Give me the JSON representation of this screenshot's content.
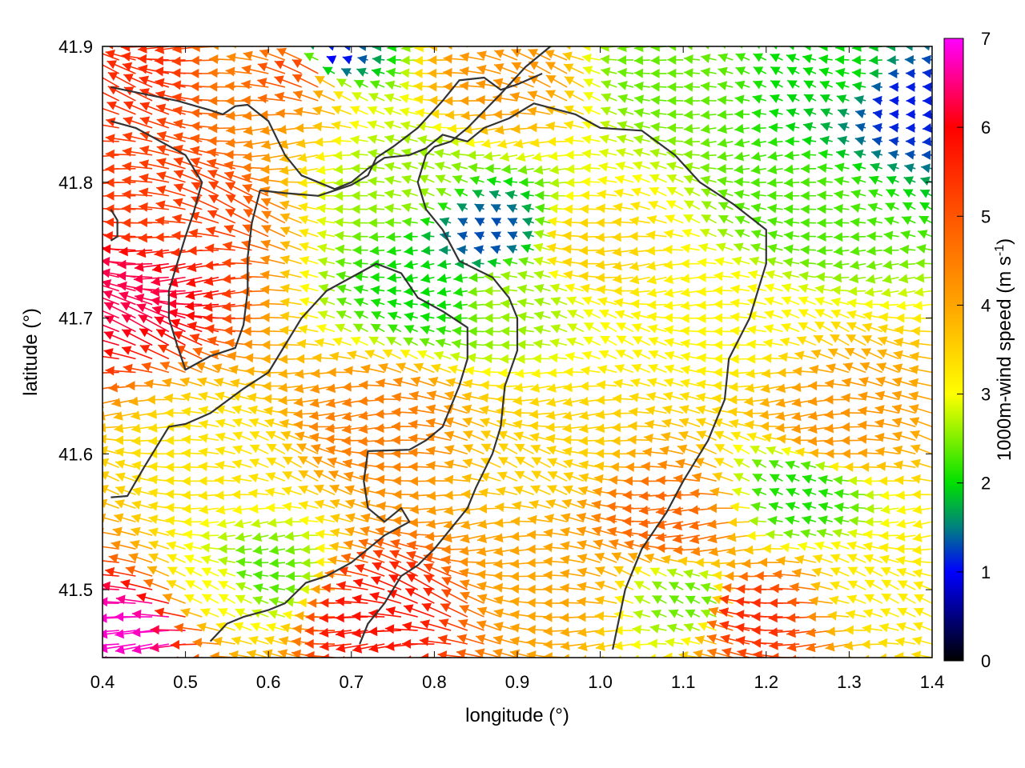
{
  "chart_data": {
    "type": "quiver",
    "title": "",
    "xlabel": "longitude (°)",
    "ylabel": "latitude (°)",
    "xlim": [
      0.4,
      1.4
    ],
    "ylim": [
      41.45,
      41.9
    ],
    "xticks": [
      "0.4",
      "0.5",
      "0.6",
      "0.7",
      "0.8",
      "0.9",
      "1.0",
      "1.1",
      "1.2",
      "1.3",
      "1.4"
    ],
    "yticks": [
      "41.5",
      "41.6",
      "41.7",
      "41.8",
      "41.9"
    ],
    "grid": false,
    "colorbar": {
      "label": "1000m-wind speed (m s",
      "label_superscript": "-1",
      "label_suffix": ")",
      "range": [
        0,
        7
      ],
      "ticks": [
        "0",
        "1",
        "2",
        "3",
        "4",
        "5",
        "6",
        "7"
      ],
      "colormap": [
        {
          "value": 0,
          "color": "#000000"
        },
        {
          "value": 1,
          "color": "#0000ff"
        },
        {
          "value": 1.5,
          "color": "#008080"
        },
        {
          "value": 2,
          "color": "#00e000"
        },
        {
          "value": 3,
          "color": "#ffff00"
        },
        {
          "value": 4,
          "color": "#ffa500"
        },
        {
          "value": 5,
          "color": "#ff5500"
        },
        {
          "value": 6,
          "color": "#ff0000"
        },
        {
          "value": 7,
          "color": "#ff00ff"
        }
      ]
    },
    "wind_field": {
      "description_units": "speed in m s-1, direction degrees (mathematical, 180 = toward west)",
      "grid_lon_step": 0.02,
      "grid_lat_step": 0.01,
      "prevailing_direction_deg": 180,
      "speed_regions": [
        {
          "lon": 0.45,
          "lat": 41.88,
          "speed": 5.5
        },
        {
          "lon": 0.65,
          "lat": 41.88,
          "speed": 5.2
        },
        {
          "lon": 0.68,
          "lat": 41.89,
          "speed": 1.0
        },
        {
          "lon": 0.9,
          "lat": 41.88,
          "speed": 4.2
        },
        {
          "lon": 1.08,
          "lat": 41.88,
          "speed": 2.4
        },
        {
          "lon": 1.3,
          "lat": 41.88,
          "speed": 2.0
        },
        {
          "lon": 1.37,
          "lat": 41.86,
          "speed": 1.1
        },
        {
          "lon": 1.25,
          "lat": 41.78,
          "speed": 2.3
        },
        {
          "lon": 0.45,
          "lat": 41.72,
          "speed": 6.3
        },
        {
          "lon": 0.5,
          "lat": 41.78,
          "speed": 5.3
        },
        {
          "lon": 0.87,
          "lat": 41.76,
          "speed": 1.3
        },
        {
          "lon": 0.8,
          "lat": 41.72,
          "speed": 2.0
        },
        {
          "lon": 0.9,
          "lat": 41.72,
          "speed": 2.6
        },
        {
          "lon": 0.78,
          "lat": 41.8,
          "speed": 2.6
        },
        {
          "lon": 1.0,
          "lat": 41.75,
          "speed": 3.5
        },
        {
          "lon": 1.15,
          "lat": 41.7,
          "speed": 3.1
        },
        {
          "lon": 0.55,
          "lat": 41.6,
          "speed": 3.3
        },
        {
          "lon": 0.75,
          "lat": 41.62,
          "speed": 4.5
        },
        {
          "lon": 0.95,
          "lat": 41.6,
          "speed": 3.5
        },
        {
          "lon": 1.1,
          "lat": 41.55,
          "speed": 4.8
        },
        {
          "lon": 1.3,
          "lat": 41.62,
          "speed": 4.2
        },
        {
          "lon": 1.25,
          "lat": 41.57,
          "speed": 2.1
        },
        {
          "lon": 0.45,
          "lat": 41.47,
          "speed": 6.8
        },
        {
          "lon": 0.55,
          "lat": 41.5,
          "speed": 3.0
        },
        {
          "lon": 0.6,
          "lat": 41.51,
          "speed": 2.3
        },
        {
          "lon": 0.75,
          "lat": 41.48,
          "speed": 5.8
        },
        {
          "lon": 0.95,
          "lat": 41.5,
          "speed": 4.0
        },
        {
          "lon": 1.12,
          "lat": 41.49,
          "speed": 2.4
        },
        {
          "lon": 1.2,
          "lat": 41.48,
          "speed": 5.5
        },
        {
          "lon": 1.35,
          "lat": 41.5,
          "speed": 3.2
        }
      ]
    },
    "contours": {
      "color": "#333333",
      "lines": [
        [
          [
            0.41,
            41.757
          ],
          [
            0.418,
            41.76
          ],
          [
            0.418,
            41.772
          ],
          [
            0.41,
            41.78
          ]
        ],
        [
          [
            0.41,
            41.87
          ],
          [
            0.45,
            41.865
          ],
          [
            0.49,
            41.86
          ],
          [
            0.53,
            41.853
          ],
          [
            0.545,
            41.85
          ],
          [
            0.56,
            41.856
          ],
          [
            0.575,
            41.857
          ],
          [
            0.6,
            41.845
          ],
          [
            0.62,
            41.82
          ],
          [
            0.64,
            41.805
          ],
          [
            0.68,
            41.795
          ],
          [
            0.7,
            41.8
          ],
          [
            0.72,
            41.81
          ],
          [
            0.74,
            41.818
          ],
          [
            0.77,
            41.82
          ],
          [
            0.79,
            41.825
          ],
          [
            0.81,
            41.835
          ],
          [
            0.84,
            41.83
          ],
          [
            0.86,
            41.84
          ],
          [
            0.89,
            41.847
          ],
          [
            0.92,
            41.858
          ],
          [
            0.97,
            41.85
          ],
          [
            1.0,
            41.84
          ],
          [
            1.05,
            41.838
          ],
          [
            1.09,
            41.82
          ],
          [
            1.12,
            41.8
          ],
          [
            1.16,
            41.784
          ],
          [
            1.2,
            41.765
          ],
          [
            1.2,
            41.74
          ],
          [
            1.19,
            41.72
          ],
          [
            1.18,
            41.7
          ],
          [
            1.155,
            41.67
          ],
          [
            1.15,
            41.64
          ],
          [
            1.13,
            41.61
          ],
          [
            1.1,
            41.58
          ],
          [
            1.08,
            41.557
          ],
          [
            1.05,
            41.53
          ],
          [
            1.03,
            41.5
          ],
          [
            1.015,
            41.456
          ]
        ],
        [
          [
            0.41,
            41.845
          ],
          [
            0.44,
            41.84
          ],
          [
            0.47,
            41.83
          ],
          [
            0.5,
            41.82
          ],
          [
            0.52,
            41.8
          ],
          [
            0.51,
            41.778
          ],
          [
            0.5,
            41.76
          ],
          [
            0.49,
            41.74
          ],
          [
            0.48,
            41.72
          ],
          [
            0.48,
            41.7
          ],
          [
            0.49,
            41.68
          ],
          [
            0.5,
            41.662
          ],
          [
            0.53,
            41.672
          ],
          [
            0.56,
            41.678
          ],
          [
            0.57,
            41.695
          ],
          [
            0.575,
            41.72
          ],
          [
            0.575,
            41.745
          ],
          [
            0.58,
            41.77
          ],
          [
            0.59,
            41.794
          ],
          [
            0.62,
            41.792
          ],
          [
            0.66,
            41.79
          ],
          [
            0.7,
            41.798
          ],
          [
            0.72,
            41.805
          ],
          [
            0.73,
            41.818
          ],
          [
            0.75,
            41.826
          ],
          [
            0.78,
            41.84
          ],
          [
            0.81,
            41.86
          ],
          [
            0.83,
            41.875
          ],
          [
            0.86,
            41.877
          ],
          [
            0.88,
            41.868
          ],
          [
            0.9,
            41.872
          ],
          [
            0.93,
            41.88
          ]
        ],
        [
          [
            0.41,
            41.568
          ],
          [
            0.43,
            41.569
          ],
          [
            0.45,
            41.59
          ],
          [
            0.48,
            41.62
          ],
          [
            0.5,
            41.622
          ],
          [
            0.53,
            41.63
          ],
          [
            0.57,
            41.648
          ],
          [
            0.6,
            41.66
          ],
          [
            0.62,
            41.68
          ],
          [
            0.64,
            41.7
          ],
          [
            0.67,
            41.72
          ],
          [
            0.7,
            41.73
          ],
          [
            0.73,
            41.74
          ],
          [
            0.76,
            41.733
          ],
          [
            0.78,
            41.715
          ],
          [
            0.81,
            41.705
          ],
          [
            0.84,
            41.693
          ],
          [
            0.84,
            41.67
          ],
          [
            0.83,
            41.65
          ],
          [
            0.81,
            41.62
          ],
          [
            0.79,
            41.61
          ],
          [
            0.77,
            41.603
          ],
          [
            0.72,
            41.602
          ],
          [
            0.715,
            41.58
          ],
          [
            0.72,
            41.56
          ],
          [
            0.74,
            41.55
          ],
          [
            0.76,
            41.56
          ],
          [
            0.77,
            41.55
          ],
          [
            0.74,
            41.54
          ],
          [
            0.72,
            41.53
          ],
          [
            0.7,
            41.52
          ],
          [
            0.67,
            41.51
          ],
          [
            0.645,
            41.505
          ],
          [
            0.62,
            41.49
          ],
          [
            0.6,
            41.485
          ],
          [
            0.57,
            41.48
          ],
          [
            0.55,
            41.475
          ],
          [
            0.53,
            41.462
          ]
        ],
        [
          [
            0.96,
            41.92
          ],
          [
            0.94,
            41.9
          ],
          [
            0.91,
            41.885
          ],
          [
            0.88,
            41.865
          ],
          [
            0.84,
            41.84
          ],
          [
            0.82,
            41.83
          ],
          [
            0.8,
            41.826
          ],
          [
            0.79,
            41.82
          ],
          [
            0.78,
            41.8
          ],
          [
            0.79,
            41.78
          ],
          [
            0.81,
            41.765
          ],
          [
            0.83,
            41.742
          ],
          [
            0.87,
            41.73
          ],
          [
            0.89,
            41.715
          ],
          [
            0.9,
            41.7
          ],
          [
            0.9,
            41.676
          ],
          [
            0.885,
            41.65
          ],
          [
            0.88,
            41.62
          ],
          [
            0.87,
            41.6
          ],
          [
            0.85,
            41.575
          ],
          [
            0.84,
            41.56
          ],
          [
            0.82,
            41.545
          ],
          [
            0.8,
            41.53
          ],
          [
            0.78,
            41.518
          ],
          [
            0.76,
            41.51
          ],
          [
            0.74,
            41.49
          ],
          [
            0.72,
            41.475
          ],
          [
            0.71,
            41.46
          ]
        ]
      ]
    }
  }
}
